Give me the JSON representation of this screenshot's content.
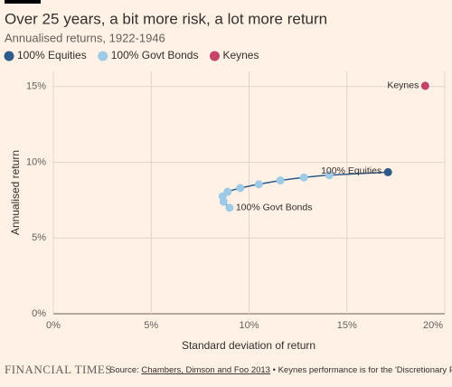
{
  "chart_data": {
    "type": "scatter",
    "title": "Over 25 years, a bit more risk, a lot more return",
    "subtitle": "Annualised returns, 1922-1946",
    "x_label": "Standard deviation of return",
    "y_label": "Annualised return",
    "series": [
      {
        "name": "100% Equities",
        "color": "#2f5a8c",
        "x": [
          17.1
        ],
        "values": [
          9.35
        ]
      },
      {
        "name": "100% Govt Bonds",
        "color": "#9ecae8",
        "x": [
          9.0,
          8.7,
          8.65,
          8.9,
          9.55,
          10.5,
          11.6,
          12.8,
          14.1
        ],
        "values": [
          7.0,
          7.4,
          7.75,
          8.05,
          8.3,
          8.55,
          8.8,
          9.0,
          9.15
        ]
      },
      {
        "name": "Keynes",
        "color": "#c6436a",
        "x": [
          19.0
        ],
        "values": [
          15.05
        ]
      }
    ],
    "line_color": "#2f5a8c",
    "xlim": [
      0,
      20
    ],
    "ylim": [
      0,
      16
    ],
    "xticks": [
      {
        "value": 0,
        "label": "0%"
      },
      {
        "value": 5,
        "label": "5%"
      },
      {
        "value": 10,
        "label": "10%"
      },
      {
        "value": 15,
        "label": "15%"
      },
      {
        "value": 20,
        "label": "20%"
      }
    ],
    "yticks": [
      {
        "value": 0,
        "label": "0%"
      },
      {
        "value": 5,
        "label": "5%"
      },
      {
        "value": 10,
        "label": "10%"
      },
      {
        "value": 15,
        "label": "15%"
      }
    ],
    "grid": true,
    "source_prefix": "Source: ",
    "source_link": "Chambers, Dimson and Foo 2013",
    "source_rest": " • Keynes performance is for the 'Discretionary Portfolio' he managed for King's College. FTAV calcs.",
    "brand": "FINANCIAL TIMES"
  }
}
